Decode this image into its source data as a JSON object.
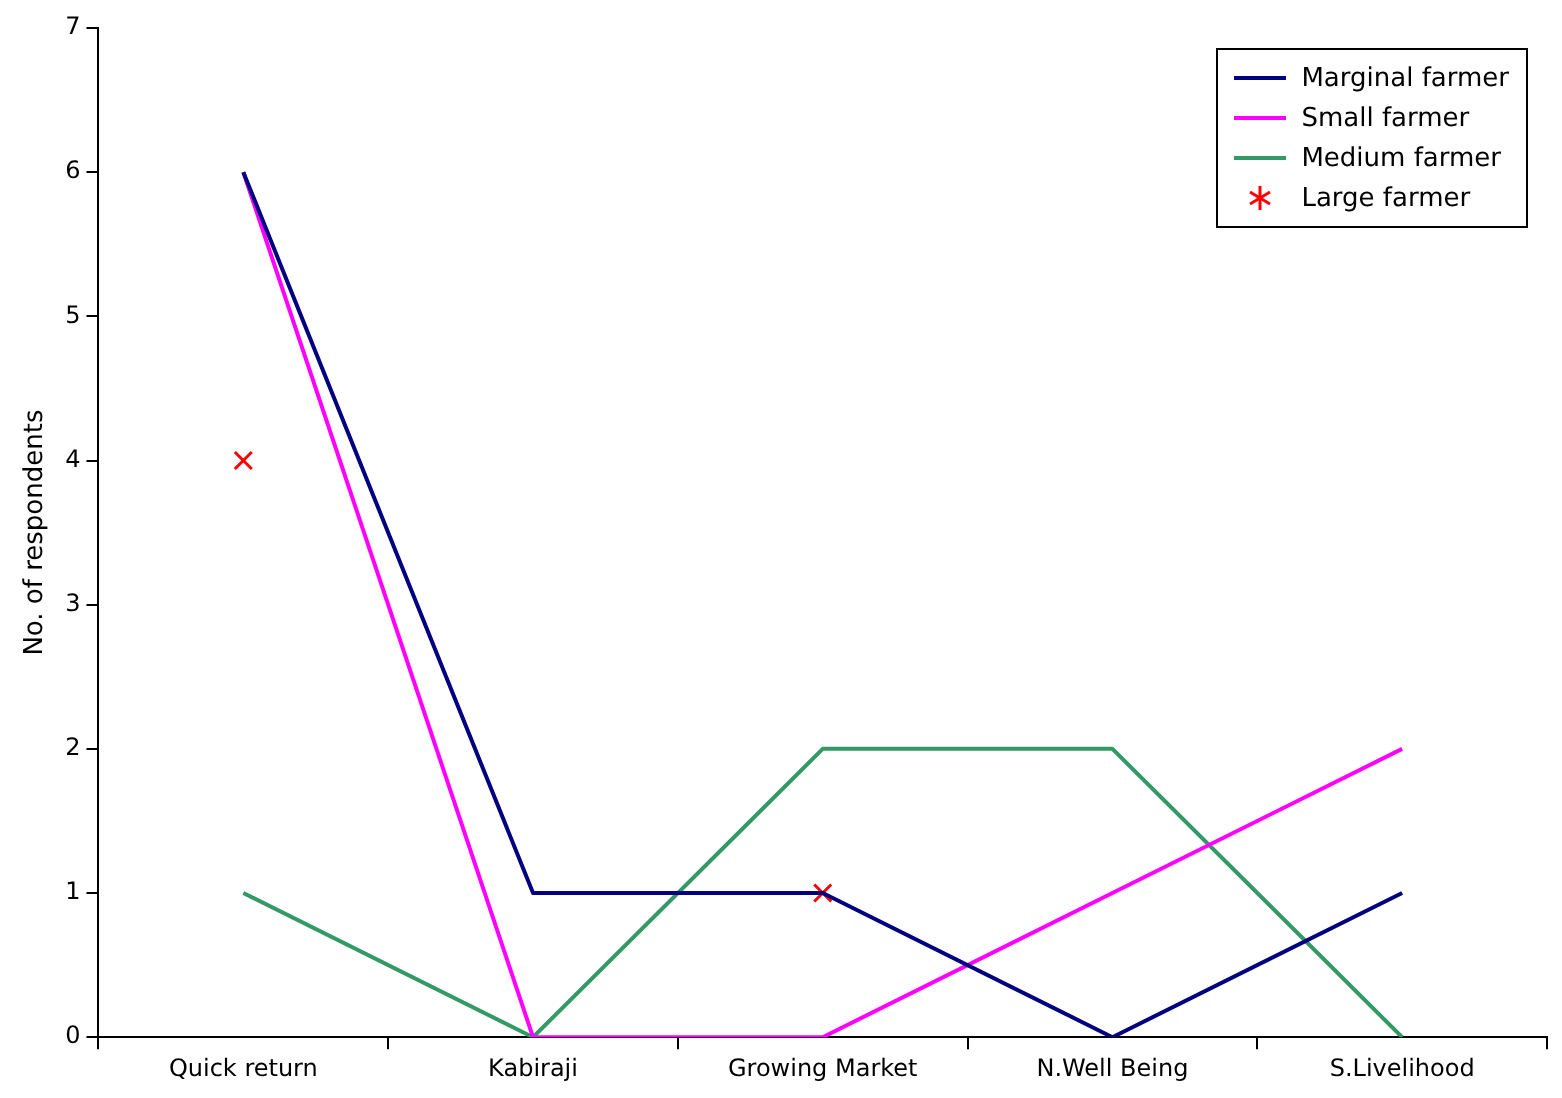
{
  "chart_data": {
    "type": "line",
    "ylabel": "No. of respondents",
    "categories": [
      "Quick return",
      "Kabiraji",
      "Growing Market",
      "N.Well Being",
      "S.Livelihood"
    ],
    "ylim": [
      0,
      7
    ],
    "yticks": [
      0,
      1,
      2,
      3,
      4,
      5,
      6,
      7
    ],
    "grid": false,
    "legend": "top right",
    "marker": "none",
    "line_style": "solid",
    "series": [
      {
        "name": "Marginal farmer",
        "color": "#000080",
        "values": [
          6,
          1,
          1,
          0,
          1
        ]
      },
      {
        "name": "Small farmer",
        "color": "#ff00ff",
        "values": [
          6,
          0,
          0,
          1,
          2
        ]
      },
      {
        "name": "Medium farmer",
        "color": "#339966",
        "values": [
          1,
          0,
          2,
          2,
          0
        ]
      },
      {
        "name": "Large farmer",
        "color": "#ff0000",
        "type": "scatter",
        "marker": "cross",
        "x": [
          "Quick return",
          "Growing Market"
        ],
        "values": [
          4,
          1
        ]
      }
    ]
  }
}
